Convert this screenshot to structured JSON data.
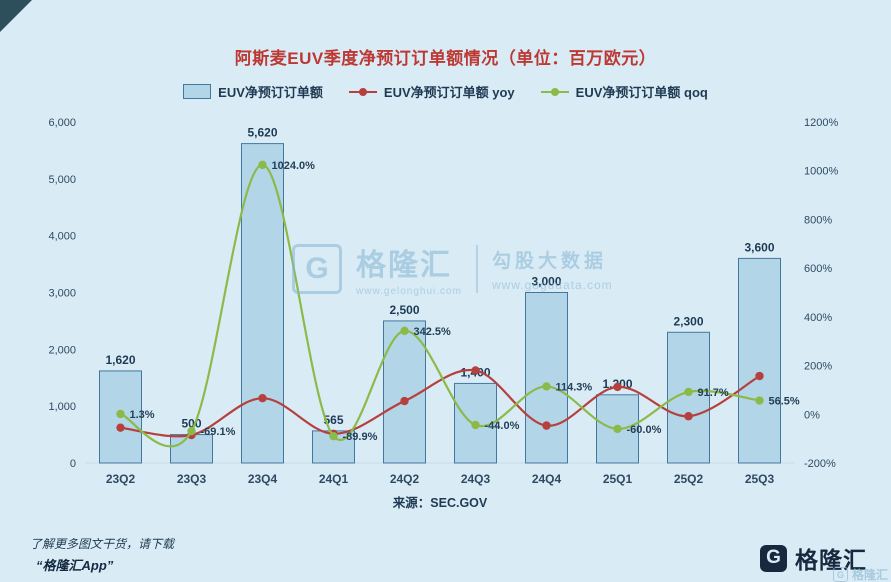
{
  "page": {
    "title": "阿斯麦EUV季度净预订订单额情况（单位：百万欧元）",
    "source": "来源：SEC.GOV",
    "footer": {
      "line1": "了解更多图文干货，请下载",
      "line2": "“格隆汇App”"
    },
    "brand": {
      "name": "格隆汇",
      "mark": "G"
    },
    "watermark": {
      "mark": "G",
      "brand": "格隆汇",
      "brand_site": "www.gelonghui.com",
      "product": "勾股大数据",
      "site": "www.gogudata.com"
    }
  },
  "chart_data": {
    "type": "bar",
    "combo": "bar with two line series on secondary percent axis",
    "title": "阿斯麦EUV季度净预订订单额情况（单位：百万欧元）",
    "categories": [
      "23Q2",
      "23Q3",
      "23Q4",
      "24Q1",
      "24Q2",
      "24Q3",
      "24Q4",
      "25Q1",
      "25Q2",
      "25Q3"
    ],
    "series": [
      {
        "name": "EUV净预订订单额",
        "type": "bar",
        "axis": "left",
        "color": "#b3d5e8",
        "border_color": "#44779d",
        "values": [
          1620,
          500,
          5620,
          565,
          2500,
          1400,
          3000,
          1200,
          2300,
          3600
        ],
        "value_labels": [
          "1,620",
          "500",
          "5,620",
          "565",
          "2,500",
          "1,400",
          "3,000",
          "1,200",
          "2,300",
          "3,600"
        ]
      },
      {
        "name": "EUV净预订订单额 yoy",
        "type": "line",
        "axis": "right",
        "color": "#b5403e",
        "values": [
          -55,
          -85,
          66,
          -80,
          54.3,
          180,
          -46.6,
          112.4,
          -8,
          157.1
        ],
        "value_labels": [
          "",
          "",
          "",
          "",
          "",
          "",
          "",
          "",
          "",
          ""
        ]
      },
      {
        "name": "EUV净预订订单额 qoq",
        "type": "line",
        "axis": "right",
        "color": "#8cba49",
        "values": [
          1.3,
          -69.1,
          1024,
          -89.9,
          342.5,
          -44,
          114.3,
          -60,
          91.7,
          56.5
        ],
        "value_labels": [
          "1.3%",
          "-69.1%",
          "1024.0%",
          "-89.9%",
          "342.5%",
          "-44.0%",
          "114.3%",
          "-60.0%",
          "91.7%",
          "56.5%"
        ]
      }
    ],
    "left_axis": {
      "min": 0,
      "max": 6000,
      "step": 1000,
      "tick_labels": [
        "0",
        "1,000",
        "2,000",
        "3,000",
        "4,000",
        "5,000",
        "6,000"
      ]
    },
    "right_axis": {
      "min": -200,
      "max": 1200,
      "step": 200,
      "tick_labels": [
        "-200%",
        "0%",
        "200%",
        "400%",
        "600%",
        "800%",
        "1000%",
        "1200%"
      ]
    },
    "legend_position": "top",
    "grid": false
  }
}
